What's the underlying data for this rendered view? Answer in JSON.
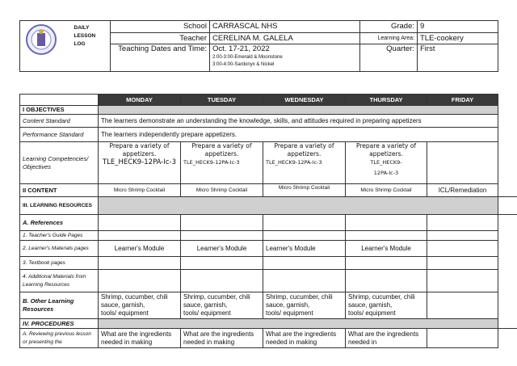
{
  "header": {
    "title_lines": [
      "DAILY",
      "LESSON",
      "LOG"
    ],
    "school_label": "School",
    "school": "CARRASCAL NHS",
    "teacher_label": "Teacher",
    "teacher": "CERELINA M. GALELA",
    "dates_label": "Teaching Dates and Time:",
    "dates": "Oct. 17-21, 2022",
    "time1": "2:00-3:00-Emerald & Moonstone",
    "time2": "3:00-4:00-Sardonyx & Nickel",
    "grade_label": "Grade:",
    "grade": "9",
    "area_label": "Learning Area:",
    "area": "TLE-cookery",
    "quarter_label": "Quarter:",
    "quarter": "First",
    "logo_icon": "deped-seal-icon"
  },
  "days": [
    "MONDAY",
    "TUESDAY",
    "WEDNESDAY",
    "THURSDAY",
    "FRIDAY"
  ],
  "rows": {
    "objectives": "I OBJECTIVES",
    "content_standard": {
      "label": "Content Standard",
      "text": "The learners demonstrate an understanding the knowledge, skills, and attitudes required in preparing appetizers"
    },
    "performance_standard": {
      "label": "Performance Standard",
      "text": "The learners independently prepare appetizers."
    },
    "competencies": {
      "label": "Learning Competencies/ Objectives",
      "lines": [
        "Prepare a variety of",
        "appetizers."
      ],
      "codes": [
        "TLE_HECK9-12PA-Ic-3",
        "TLE_HECK9-12PA-Ic-3",
        "TLE_HECK9-12PA-Ic-3",
        "TLE_HECK9-",
        "12PA-Ic-3"
      ]
    },
    "content": {
      "label": "II CONTENT",
      "values": [
        "Micro Shrimp Cocktail",
        "Micro Shrimp Cocktail",
        "Micro Shrimp Cocktail",
        "Micro Shrimp Cocktail",
        "ICL/Remediation"
      ]
    },
    "learning_resources": "III. LEARNING RESOURCES",
    "references": "A. References",
    "tg": "1. Teacher's Guide Pages",
    "lm": {
      "label": "2. Learner's Materials pages",
      "value": "Learner's Module"
    },
    "textbook": "3. Textbook pages",
    "additional": "4. Additional Materials from Learning Resources",
    "other": {
      "label": "B. Other Learning Resources",
      "l1": "Shrimp, cucumber, chili",
      "l2": "sauce, garnish,",
      "l3": " tools/ equipment"
    },
    "procedures": "IV. PROCEDURES",
    "review": {
      "label": "A. Reviewing previous lesson or presenting the",
      "text": "What are the ingredients needed in making",
      "thu": "What are the ingredients needed in"
    }
  }
}
